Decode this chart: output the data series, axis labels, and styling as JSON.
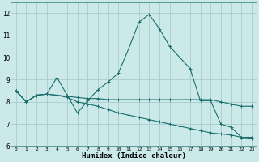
{
  "title": "",
  "xlabel": "Humidex (Indice chaleur)",
  "background_color": "#cce9e9",
  "grid_color": "#aacccc",
  "line_color": "#1a6e6e",
  "xlim": [
    -0.5,
    23.5
  ],
  "ylim": [
    6,
    12.5
  ],
  "yticks": [
    6,
    7,
    8,
    9,
    10,
    11,
    12
  ],
  "xticks": [
    0,
    1,
    2,
    3,
    4,
    5,
    6,
    7,
    8,
    9,
    10,
    11,
    12,
    13,
    14,
    15,
    16,
    17,
    18,
    19,
    20,
    21,
    22,
    23
  ],
  "series": [
    [
      8.5,
      8.0,
      8.3,
      8.35,
      9.1,
      8.3,
      7.5,
      8.05,
      8.55,
      8.9,
      9.3,
      10.4,
      11.6,
      11.95,
      11.3,
      10.5,
      10.0,
      9.5,
      8.05,
      8.05,
      7.0,
      6.85,
      6.4,
      6.4
    ],
    [
      8.5,
      8.0,
      8.3,
      8.35,
      8.3,
      8.25,
      8.2,
      8.15,
      8.15,
      8.1,
      8.1,
      8.1,
      8.1,
      8.1,
      8.1,
      8.1,
      8.1,
      8.1,
      8.1,
      8.1,
      8.0,
      7.9,
      7.8,
      7.8
    ],
    [
      8.5,
      8.0,
      8.3,
      8.35,
      8.3,
      8.2,
      8.0,
      7.9,
      7.8,
      7.65,
      7.5,
      7.4,
      7.3,
      7.2,
      7.1,
      7.0,
      6.9,
      6.8,
      6.7,
      6.6,
      6.55,
      6.5,
      6.4,
      6.35
    ]
  ]
}
